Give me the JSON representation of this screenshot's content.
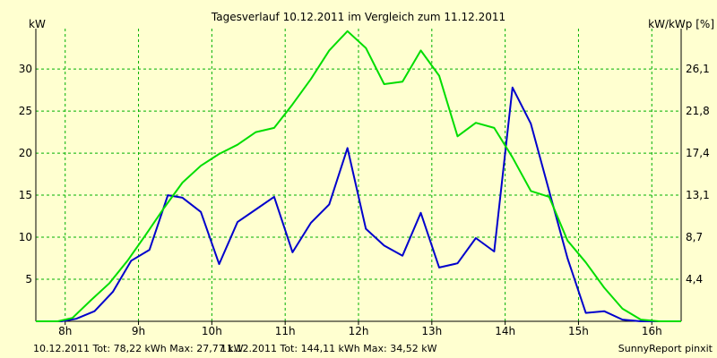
{
  "chart_data": {
    "type": "line",
    "title": "Tagesverlauf 10.12.2011 im Vergleich zum 11.12.2011",
    "ylabel_left": "kW",
    "ylabel_right": "kW/kWp [%]",
    "xlim": [
      7.6,
      16.4
    ],
    "ylim": [
      0,
      34.8
    ],
    "x_ticks": [
      {
        "v": 8,
        "label": "8h"
      },
      {
        "v": 9,
        "label": "9h"
      },
      {
        "v": 10,
        "label": "10h"
      },
      {
        "v": 11,
        "label": "11h"
      },
      {
        "v": 12,
        "label": "12h"
      },
      {
        "v": 13,
        "label": "13h"
      },
      {
        "v": 14,
        "label": "14h"
      },
      {
        "v": 15,
        "label": "15h"
      },
      {
        "v": 16,
        "label": "16h"
      }
    ],
    "y_ticks": [
      {
        "v": 5,
        "label": "5"
      },
      {
        "v": 10,
        "label": "10"
      },
      {
        "v": 15,
        "label": "15"
      },
      {
        "v": 20,
        "label": "20"
      },
      {
        "v": 25,
        "label": "25"
      },
      {
        "v": 30,
        "label": "30"
      }
    ],
    "y2_ticks": [
      {
        "v": 5,
        "label": "4,4"
      },
      {
        "v": 10,
        "label": "8,7"
      },
      {
        "v": 15,
        "label": "13,1"
      },
      {
        "v": 20,
        "label": "17,4"
      },
      {
        "v": 25,
        "label": "21,8"
      },
      {
        "v": 30,
        "label": "26,1"
      }
    ],
    "series": [
      {
        "name": "10.12.2011",
        "color": "#0000cc",
        "x": [
          7.6,
          7.95,
          8.15,
          8.4,
          8.65,
          8.9,
          9.15,
          9.4,
          9.6,
          9.85,
          10.1,
          10.35,
          10.6,
          10.85,
          11.1,
          11.35,
          11.6,
          11.85,
          12.1,
          12.35,
          12.6,
          12.85,
          13.1,
          13.35,
          13.6,
          13.85,
          14.1,
          14.35,
          14.6,
          14.85,
          15.1,
          15.35,
          15.6,
          15.85,
          16.4
        ],
        "values": [
          0,
          0,
          0.3,
          1.2,
          3.5,
          7.2,
          8.5,
          15.0,
          14.7,
          13.0,
          6.8,
          11.8,
          13.3,
          14.8,
          8.2,
          11.7,
          13.9,
          20.6,
          11.0,
          9.0,
          7.8,
          12.9,
          6.4,
          6.9,
          9.9,
          8.3,
          27.8,
          23.5,
          15.5,
          7.5,
          1.0,
          1.2,
          0.2,
          0,
          0
        ]
      },
      {
        "name": "11.12.2011",
        "color": "#00dd00",
        "x": [
          7.6,
          7.9,
          8.1,
          8.35,
          8.6,
          8.85,
          9.1,
          9.35,
          9.6,
          9.85,
          10.1,
          10.35,
          10.6,
          10.85,
          11.1,
          11.35,
          11.6,
          11.85,
          12.1,
          12.35,
          12.6,
          12.85,
          13.1,
          13.35,
          13.6,
          13.85,
          14.1,
          14.35,
          14.6,
          14.85,
          15.1,
          15.35,
          15.6,
          15.85,
          16.1,
          16.4
        ],
        "values": [
          0,
          0,
          0.4,
          2.5,
          4.5,
          7.2,
          10.3,
          13.5,
          16.5,
          18.5,
          19.9,
          21.0,
          22.5,
          23.0,
          25.8,
          28.8,
          32.2,
          34.5,
          32.5,
          28.2,
          28.5,
          32.2,
          29.2,
          22.0,
          23.6,
          23.0,
          19.5,
          15.5,
          14.8,
          9.6,
          7.0,
          4.0,
          1.5,
          0.2,
          0,
          0
        ]
      }
    ]
  },
  "footer": {
    "legend_blue": "10.12.2011 Tot: 78,22 kWh Max: 27,77 kW",
    "legend_green": "11.12.2011 Tot: 144,11 kWh Max: 34,52 kW",
    "credit": "SunnyReport pinxit"
  }
}
